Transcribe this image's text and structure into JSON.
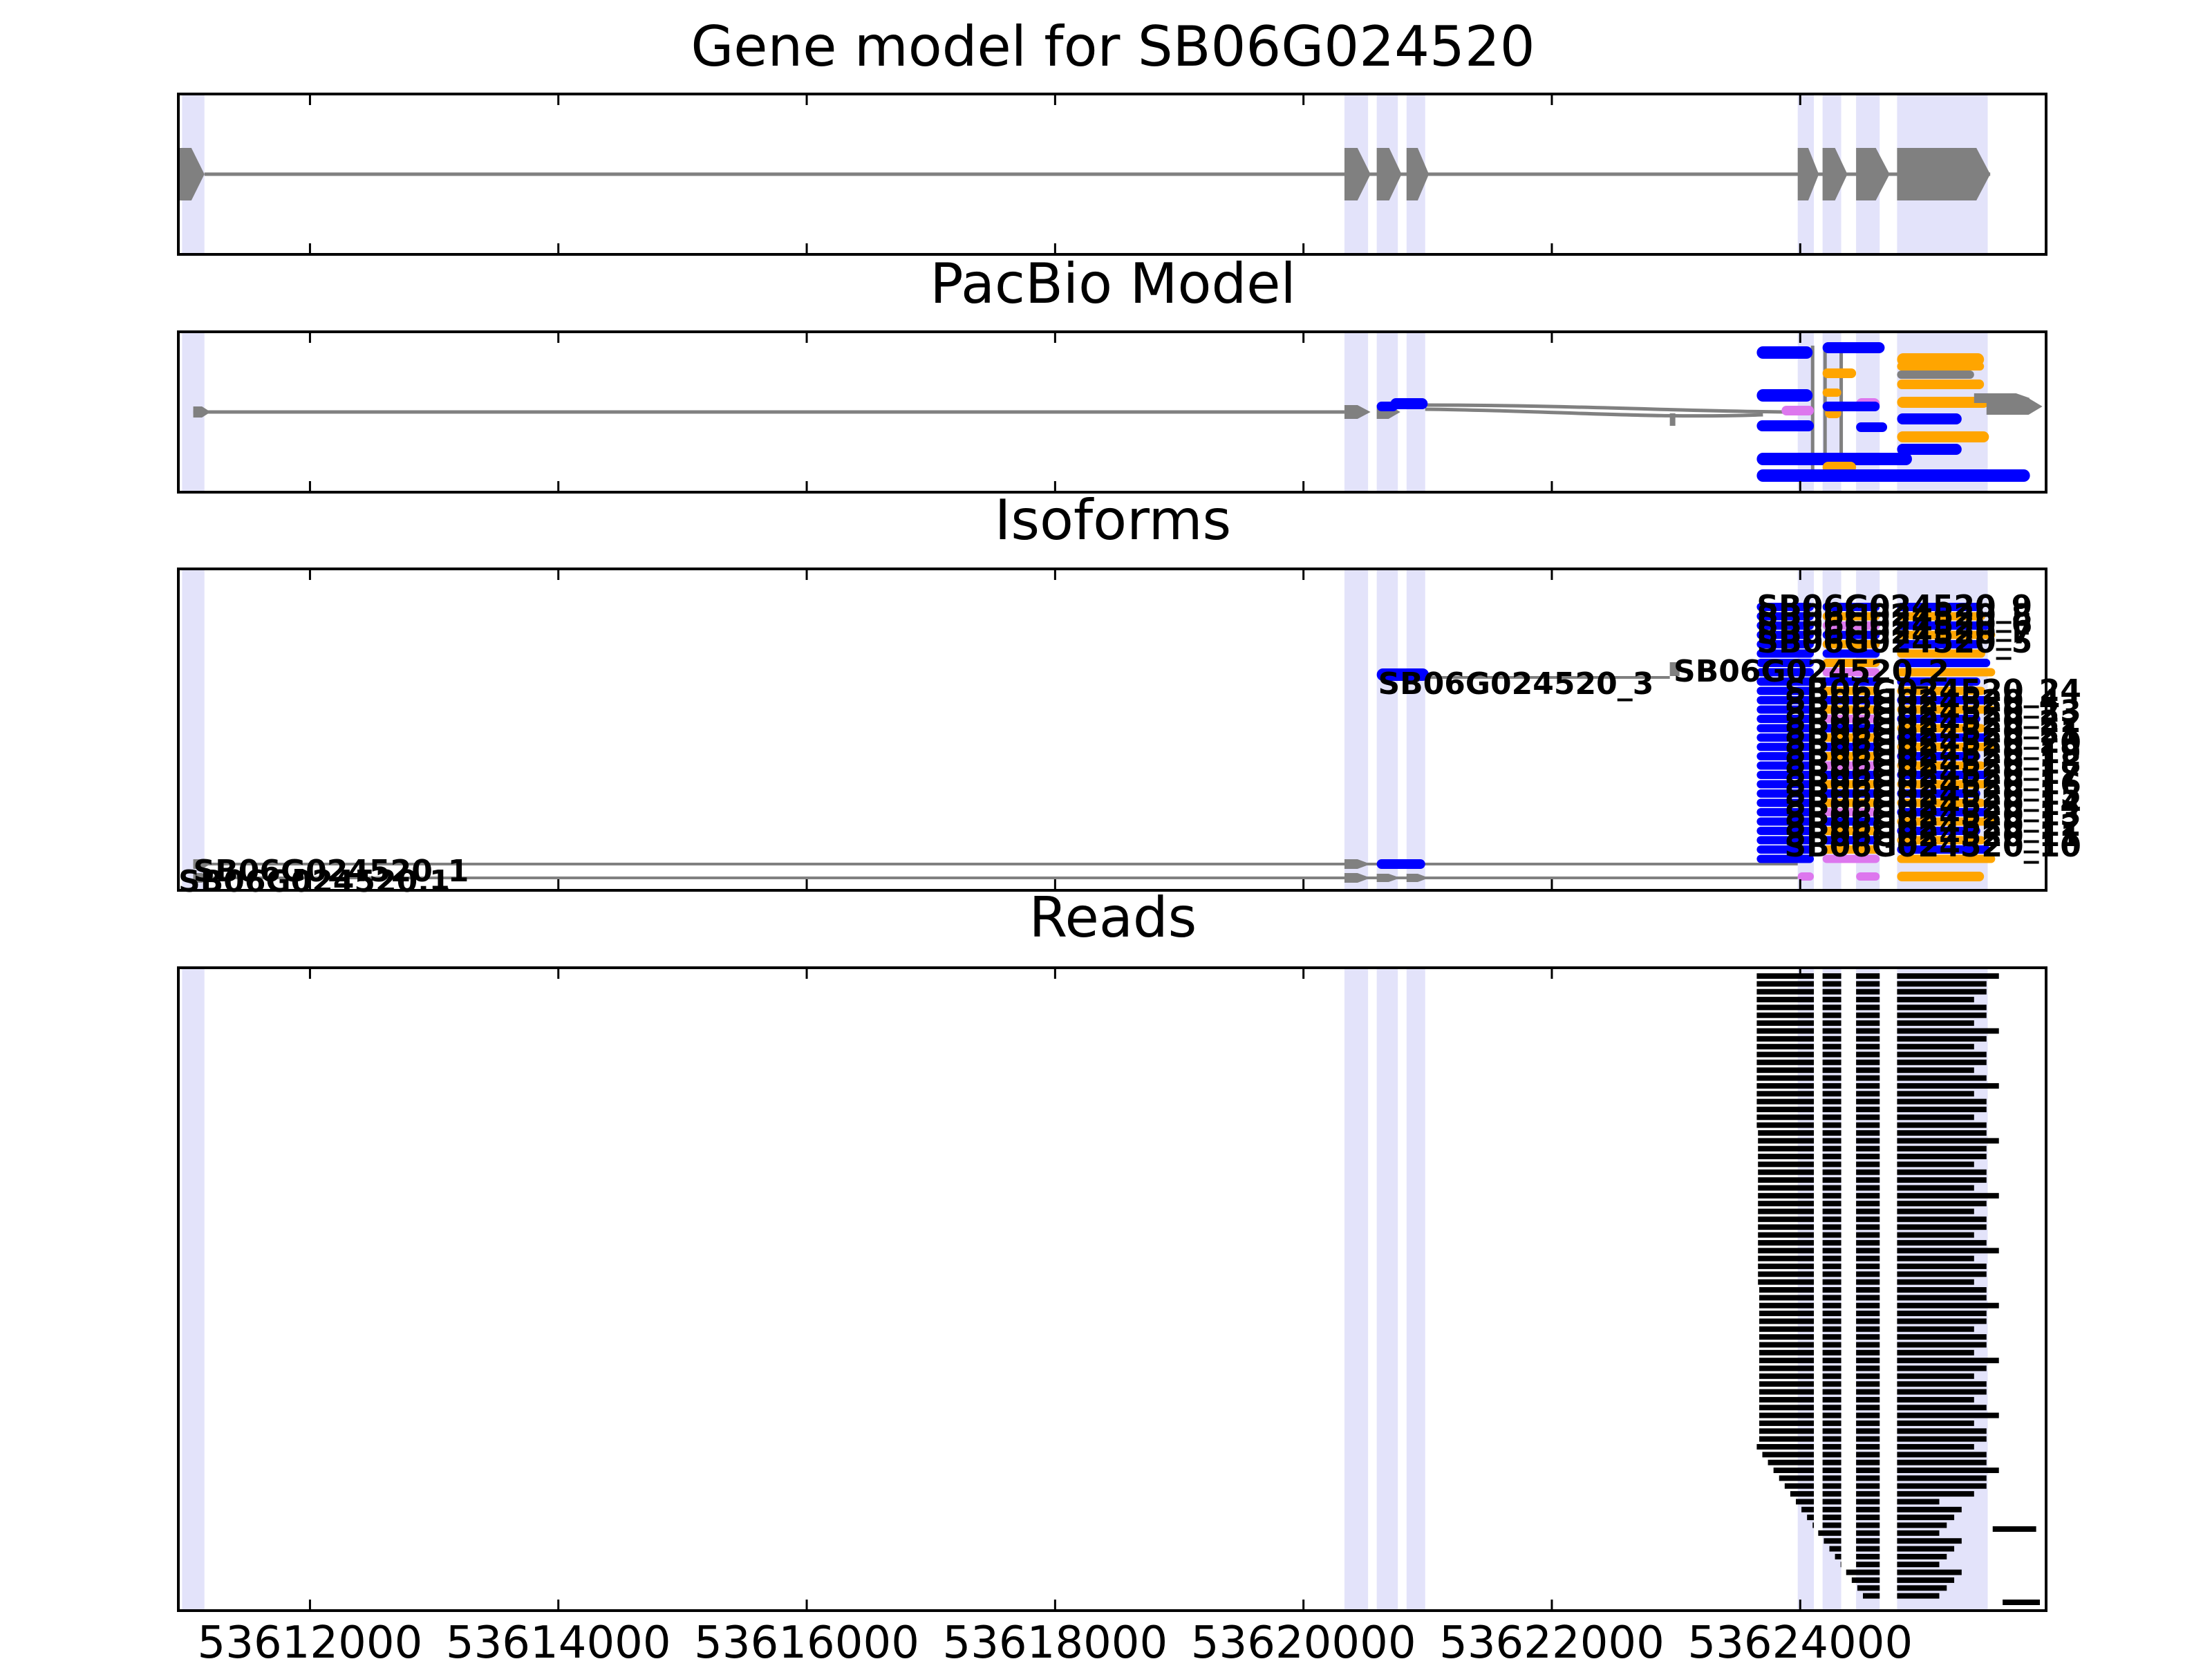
{
  "chart_data": {
    "type": "gene-track",
    "x_ticks": [
      53612000,
      53614000,
      53616000,
      53618000,
      53620000,
      53622000,
      53624000
    ],
    "x_tick_labels": [
      "53612000",
      "53614000",
      "53616000",
      "53618000",
      "53620000",
      "53622000",
      "53624000"
    ],
    "xlim": [
      53610940,
      53625980
    ],
    "highlight_exons": [
      [
        53610970,
        53611150
      ],
      [
        53620330,
        53620520
      ],
      [
        53620590,
        53620760
      ],
      [
        53620830,
        53620980
      ],
      [
        53623980,
        53624110
      ],
      [
        53624180,
        53624330
      ],
      [
        53624450,
        53624640
      ],
      [
        53624780,
        53625510
      ]
    ],
    "colors": {
      "highlight": "#e3e3fa",
      "model": "#808080",
      "blue": "#0000ff",
      "orange": "#ffa500",
      "violet": "#dd77ee",
      "read": "#000000"
    },
    "panels": [
      {
        "title": "Gene model for SB06G024520",
        "gene_model": {
          "exons": [
            [
              53610940,
              53611150
            ],
            [
              53620330,
              53620540
            ],
            [
              53620590,
              53620790
            ],
            [
              53620830,
              53621010
            ],
            [
              53623980,
              53624150
            ],
            [
              53624180,
              53624380
            ],
            [
              53624450,
              53624720
            ],
            [
              53624780,
              53625530
            ]
          ],
          "intron_line": [
            53611150,
            53625530
          ]
        }
      },
      {
        "title": "PacBio Model",
        "note_free": true
      },
      {
        "title": "Isoforms",
        "isoform_labels": [
          "SB06G024520_9",
          "SB06G024520_8",
          "SB06G024520_6",
          "SB06G024520_7",
          "SB06G024520_5",
          "SB06G024520_3",
          "SB06G024520_2",
          "SB06G024520_24",
          "SB06G024520_4",
          "SB06G024520_23",
          "SB06G024520_22",
          "SB06G024520_21",
          "SB06G024520_20",
          "SB06G024520_19",
          "SB06G024520_18",
          "SB06G024520_17",
          "SB06G024520_16",
          "SB06G024520_15",
          "SB06G024520_14",
          "SB06G024520_13",
          "SB06G024520_12",
          "SB06G024520_11",
          "SB06G024520_10",
          "SB06G024520_1",
          "SB06G024520.1"
        ]
      },
      {
        "title": "Reads",
        "read_count": 80
      }
    ]
  }
}
